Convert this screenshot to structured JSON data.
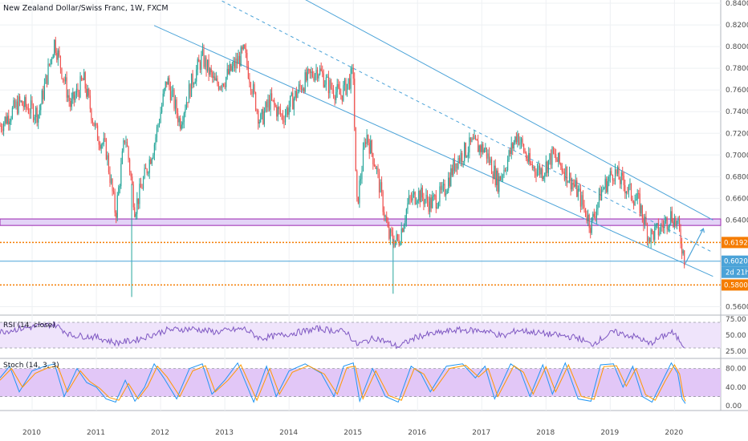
{
  "header": {
    "title": "New Zealand Dollar/Swiss Franc, 1W, FXCM"
  },
  "colors": {
    "up": "#26a69a",
    "down": "#ef5350",
    "channel": "#4ba3d8",
    "zone_fill": "#e3d3f7",
    "zone_border": "#9c27b0",
    "orange_level": "#f57c00",
    "rsi_line": "#7e57c2",
    "stoch_band": "#e2c7f7",
    "stoch_k": "#2196f3",
    "stoch_d": "#ff9800",
    "grid": "#eef0f3"
  },
  "chart_data": [
    {
      "type": "candlestick",
      "title": "New Zealand Dollar/Swiss Franc, 1W, FXCM",
      "x_ticks": [
        "2010",
        "2011",
        "2012",
        "2013",
        "2014",
        "2015",
        "2016",
        "2017",
        "2018",
        "2019",
        "2020"
      ],
      "y_ticks": [
        "0.84000",
        "0.82000",
        "0.80000",
        "0.78000",
        "0.76000",
        "0.74000",
        "0.72000",
        "0.70000",
        "0.68000",
        "0.66000",
        "0.64000",
        "0.56000"
      ],
      "ylim": [
        0.553,
        0.843
      ],
      "grid": true,
      "key_prices": [
        {
          "t": 2009.5,
          "p": 0.727
        },
        {
          "t": 2009.8,
          "p": 0.748
        },
        {
          "t": 2010.1,
          "p": 0.738
        },
        {
          "t": 2010.35,
          "p": 0.805
        },
        {
          "t": 2010.6,
          "p": 0.745
        },
        {
          "t": 2010.8,
          "p": 0.77
        },
        {
          "t": 2011.0,
          "p": 0.72
        },
        {
          "t": 2011.15,
          "p": 0.705
        },
        {
          "t": 2011.3,
          "p": 0.645
        },
        {
          "t": 2011.45,
          "p": 0.72
        },
        {
          "t": 2011.6,
          "p": 0.65
        },
        {
          "t": 2011.75,
          "p": 0.68
        },
        {
          "t": 2011.9,
          "p": 0.71
        },
        {
          "t": 2012.1,
          "p": 0.77
        },
        {
          "t": 2012.3,
          "p": 0.73
        },
        {
          "t": 2012.5,
          "p": 0.77
        },
        {
          "t": 2012.65,
          "p": 0.79
        },
        {
          "t": 2012.85,
          "p": 0.765
        },
        {
          "t": 2013.0,
          "p": 0.77
        },
        {
          "t": 2013.3,
          "p": 0.795
        },
        {
          "t": 2013.55,
          "p": 0.73
        },
        {
          "t": 2013.7,
          "p": 0.75
        },
        {
          "t": 2013.9,
          "p": 0.735
        },
        {
          "t": 2014.2,
          "p": 0.765
        },
        {
          "t": 2014.45,
          "p": 0.78
        },
        {
          "t": 2014.6,
          "p": 0.765
        },
        {
          "t": 2014.8,
          "p": 0.755
        },
        {
          "t": 2015.0,
          "p": 0.775
        },
        {
          "t": 2015.05,
          "p": 0.65
        },
        {
          "t": 2015.2,
          "p": 0.72
        },
        {
          "t": 2015.35,
          "p": 0.69
        },
        {
          "t": 2015.55,
          "p": 0.625
        },
        {
          "t": 2015.7,
          "p": 0.62
        },
        {
          "t": 2015.85,
          "p": 0.655
        },
        {
          "t": 2016.0,
          "p": 0.665
        },
        {
          "t": 2016.2,
          "p": 0.655
        },
        {
          "t": 2016.4,
          "p": 0.665
        },
        {
          "t": 2016.6,
          "p": 0.695
        },
        {
          "t": 2016.85,
          "p": 0.71
        },
        {
          "t": 2017.05,
          "p": 0.705
        },
        {
          "t": 2017.25,
          "p": 0.675
        },
        {
          "t": 2017.4,
          "p": 0.695
        },
        {
          "t": 2017.55,
          "p": 0.72
        },
        {
          "t": 2017.75,
          "p": 0.69
        },
        {
          "t": 2017.95,
          "p": 0.685
        },
        {
          "t": 2018.1,
          "p": 0.7
        },
        {
          "t": 2018.3,
          "p": 0.685
        },
        {
          "t": 2018.5,
          "p": 0.665
        },
        {
          "t": 2018.7,
          "p": 0.635
        },
        {
          "t": 2018.85,
          "p": 0.665
        },
        {
          "t": 2019.05,
          "p": 0.685
        },
        {
          "t": 2019.25,
          "p": 0.67
        },
        {
          "t": 2019.45,
          "p": 0.655
        },
        {
          "t": 2019.6,
          "p": 0.625
        },
        {
          "t": 2019.75,
          "p": 0.63
        },
        {
          "t": 2019.95,
          "p": 0.645
        },
        {
          "t": 2020.05,
          "p": 0.635
        },
        {
          "t": 2020.12,
          "p": 0.615
        },
        {
          "t": 2020.17,
          "p": 0.6
        }
      ],
      "spikes": [
        {
          "t": 2011.55,
          "low": 0.569
        },
        {
          "t": 2015.62,
          "low": 0.572
        }
      ],
      "purple_zone": [
        0.635,
        0.641
      ],
      "horizontal_levels": [
        {
          "price": 0.61927,
          "label": "0.61927",
          "style": "dotted",
          "color": "#f57c00"
        },
        {
          "price": 0.60205,
          "label": "0.60205",
          "style": "solid",
          "color": "#4ba3d8"
        },
        {
          "price": 0.58007,
          "label": "0.58007",
          "style": "dotted",
          "color": "#f57c00"
        }
      ],
      "countdown_label": "2d 21h",
      "channel": {
        "upper": [
          [
            2010.3,
            0.97
          ],
          [
            2020.6,
            0.64
          ]
        ],
        "lower": [
          [
            2010.3,
            0.862
          ],
          [
            2020.6,
            0.588
          ]
        ],
        "middle": [
          [
            2012.3,
            0.862
          ],
          [
            2020.6,
            0.61
          ]
        ]
      },
      "projection": [
        [
          2020.17,
          0.6
        ],
        [
          2020.45,
          0.632
        ]
      ]
    },
    {
      "type": "line",
      "title": "RSI (14, close)",
      "y_ticks": [
        "75.00",
        "50.00",
        "25.00"
      ],
      "ylim": [
        15,
        80
      ],
      "band": [
        30,
        70
      ],
      "series": [
        {
          "points": [
            [
              2009.5,
              55
            ],
            [
              2009.8,
              60
            ],
            [
              2010.35,
              67
            ],
            [
              2010.6,
              50
            ],
            [
              2011.0,
              47
            ],
            [
              2011.3,
              38
            ],
            [
              2011.6,
              42
            ],
            [
              2012.1,
              58
            ],
            [
              2012.5,
              60
            ],
            [
              2012.85,
              55
            ],
            [
              2013.3,
              60
            ],
            [
              2013.55,
              45
            ],
            [
              2014.0,
              52
            ],
            [
              2014.45,
              60
            ],
            [
              2014.9,
              55
            ],
            [
              2015.05,
              35
            ],
            [
              2015.35,
              46
            ],
            [
              2015.7,
              32
            ],
            [
              2016.0,
              48
            ],
            [
              2016.6,
              58
            ],
            [
              2017.05,
              57
            ],
            [
              2017.35,
              48
            ],
            [
              2017.55,
              58
            ],
            [
              2018.0,
              52
            ],
            [
              2018.5,
              46
            ],
            [
              2018.7,
              35
            ],
            [
              2019.05,
              55
            ],
            [
              2019.45,
              46
            ],
            [
              2019.6,
              36
            ],
            [
              2019.95,
              55
            ],
            [
              2020.1,
              40
            ],
            [
              2020.17,
              30
            ]
          ]
        }
      ]
    },
    {
      "type": "line",
      "title": "Stoch (14, 3, 3)",
      "y_ticks": [
        "80.00",
        "40.00",
        "0.00"
      ],
      "ylim": [
        -10,
        100
      ],
      "band": [
        20,
        80
      ],
      "series": [
        {
          "color": "#2196f3",
          "points": [
            [
              2009.5,
              60
            ],
            [
              2009.65,
              85
            ],
            [
              2009.8,
              30
            ],
            [
              2010.0,
              75
            ],
            [
              2010.2,
              85
            ],
            [
              2010.35,
              90
            ],
            [
              2010.5,
              20
            ],
            [
              2010.7,
              80
            ],
            [
              2010.85,
              50
            ],
            [
              2011.0,
              40
            ],
            [
              2011.15,
              15
            ],
            [
              2011.3,
              8
            ],
            [
              2011.45,
              55
            ],
            [
              2011.6,
              10
            ],
            [
              2011.75,
              40
            ],
            [
              2011.9,
              90
            ],
            [
              2012.05,
              60
            ],
            [
              2012.25,
              15
            ],
            [
              2012.45,
              80
            ],
            [
              2012.65,
              90
            ],
            [
              2012.8,
              25
            ],
            [
              2013.0,
              55
            ],
            [
              2013.2,
              92
            ],
            [
              2013.45,
              8
            ],
            [
              2013.65,
              85
            ],
            [
              2013.8,
              20
            ],
            [
              2014.0,
              75
            ],
            [
              2014.25,
              90
            ],
            [
              2014.5,
              70
            ],
            [
              2014.7,
              20
            ],
            [
              2014.85,
              85
            ],
            [
              2015.0,
              92
            ],
            [
              2015.1,
              10
            ],
            [
              2015.3,
              80
            ],
            [
              2015.5,
              20
            ],
            [
              2015.7,
              8
            ],
            [
              2015.9,
              85
            ],
            [
              2016.05,
              70
            ],
            [
              2016.2,
              30
            ],
            [
              2016.45,
              85
            ],
            [
              2016.7,
              90
            ],
            [
              2016.9,
              60
            ],
            [
              2017.05,
              85
            ],
            [
              2017.2,
              15
            ],
            [
              2017.45,
              90
            ],
            [
              2017.6,
              75
            ],
            [
              2017.75,
              20
            ],
            [
              2017.95,
              88
            ],
            [
              2018.1,
              25
            ],
            [
              2018.3,
              92
            ],
            [
              2018.5,
              15
            ],
            [
              2018.7,
              10
            ],
            [
              2018.85,
              88
            ],
            [
              2019.05,
              90
            ],
            [
              2019.2,
              40
            ],
            [
              2019.35,
              85
            ],
            [
              2019.5,
              20
            ],
            [
              2019.65,
              8
            ],
            [
              2019.8,
              50
            ],
            [
              2019.95,
              92
            ],
            [
              2020.05,
              70
            ],
            [
              2020.12,
              15
            ],
            [
              2020.17,
              5
            ]
          ]
        },
        {
          "color": "#ff9800",
          "points": [
            [
              2009.5,
              55
            ],
            [
              2009.68,
              80
            ],
            [
              2009.85,
              40
            ],
            [
              2010.05,
              70
            ],
            [
              2010.25,
              82
            ],
            [
              2010.4,
              85
            ],
            [
              2010.55,
              30
            ],
            [
              2010.75,
              75
            ],
            [
              2010.9,
              52
            ],
            [
              2011.05,
              38
            ],
            [
              2011.2,
              18
            ],
            [
              2011.35,
              12
            ],
            [
              2011.5,
              48
            ],
            [
              2011.65,
              15
            ],
            [
              2011.8,
              42
            ],
            [
              2011.95,
              85
            ],
            [
              2012.1,
              62
            ],
            [
              2012.3,
              20
            ],
            [
              2012.5,
              75
            ],
            [
              2012.7,
              86
            ],
            [
              2012.85,
              30
            ],
            [
              2013.05,
              55
            ],
            [
              2013.25,
              88
            ],
            [
              2013.5,
              12
            ],
            [
              2013.7,
              80
            ],
            [
              2013.85,
              25
            ],
            [
              2014.05,
              72
            ],
            [
              2014.3,
              86
            ],
            [
              2014.55,
              68
            ],
            [
              2014.75,
              25
            ],
            [
              2014.9,
              82
            ],
            [
              2015.03,
              85
            ],
            [
              2015.15,
              15
            ],
            [
              2015.35,
              75
            ],
            [
              2015.55,
              22
            ],
            [
              2015.75,
              12
            ],
            [
              2015.95,
              80
            ],
            [
              2016.1,
              68
            ],
            [
              2016.25,
              32
            ],
            [
              2016.5,
              80
            ],
            [
              2016.75,
              87
            ],
            [
              2016.95,
              62
            ],
            [
              2017.1,
              80
            ],
            [
              2017.25,
              20
            ],
            [
              2017.5,
              86
            ],
            [
              2017.65,
              72
            ],
            [
              2017.8,
              25
            ],
            [
              2018.0,
              84
            ],
            [
              2018.15,
              30
            ],
            [
              2018.35,
              88
            ],
            [
              2018.55,
              20
            ],
            [
              2018.75,
              14
            ],
            [
              2018.9,
              84
            ],
            [
              2019.1,
              86
            ],
            [
              2019.25,
              42
            ],
            [
              2019.4,
              80
            ],
            [
              2019.55,
              24
            ],
            [
              2019.7,
              12
            ],
            [
              2019.85,
              52
            ],
            [
              2020.0,
              88
            ],
            [
              2020.08,
              68
            ],
            [
              2020.14,
              20
            ],
            [
              2020.17,
              10
            ]
          ]
        }
      ]
    }
  ]
}
